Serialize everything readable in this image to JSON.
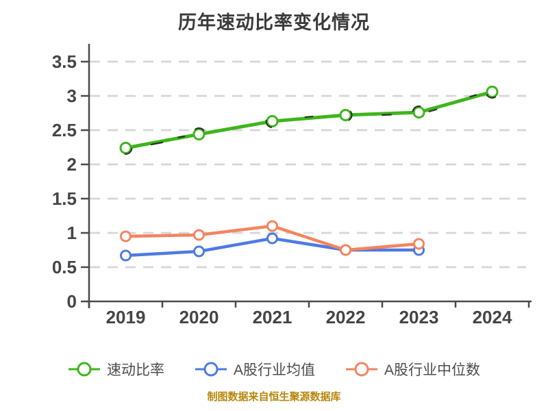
{
  "title": "历年速动比率变化情况",
  "caption": {
    "text": "制图数据来自恒生聚源数据库",
    "color": "#b8860b"
  },
  "legend": {
    "position": "bottom",
    "items": [
      "速动比率",
      "A股行业均值",
      "A股行业中位数"
    ]
  },
  "chart_data": {
    "type": "line",
    "title": "历年速动比率变化情况",
    "categories": [
      "2019",
      "2020",
      "2021",
      "2022",
      "2023",
      "2024"
    ],
    "series": [
      {
        "id": "quick-ratio",
        "name": "速动比率",
        "color": "#3eb51c",
        "values": [
          2.24,
          2.44,
          2.63,
          2.72,
          2.76,
          3.06
        ]
      },
      {
        "id": "industry-mean",
        "name": "A股行业均值",
        "color": "#4d7ae3",
        "values": [
          0.67,
          0.73,
          0.92,
          0.75,
          0.75,
          null
        ]
      },
      {
        "id": "industry-median",
        "name": "A股行业中位数",
        "color": "#f4845f",
        "values": [
          0.95,
          0.97,
          1.1,
          0.75,
          0.84,
          null
        ]
      }
    ],
    "xlabel": "",
    "ylabel": "",
    "ylim": [
      0,
      3.5
    ],
    "ytick_step": 0.5,
    "grid": "dashed-horizontal",
    "legend_position": "bottom",
    "marker": "circle-white-fill",
    "style": "hand-drawn-sketch"
  },
  "colors": {
    "grid": "#d6d6d6",
    "axis": "#4a4a4a",
    "tick_label": "#454545",
    "title": "#3a3a3a",
    "legend_label": "#4c4c4c",
    "sketch_accent": "#1c1c1c"
  }
}
